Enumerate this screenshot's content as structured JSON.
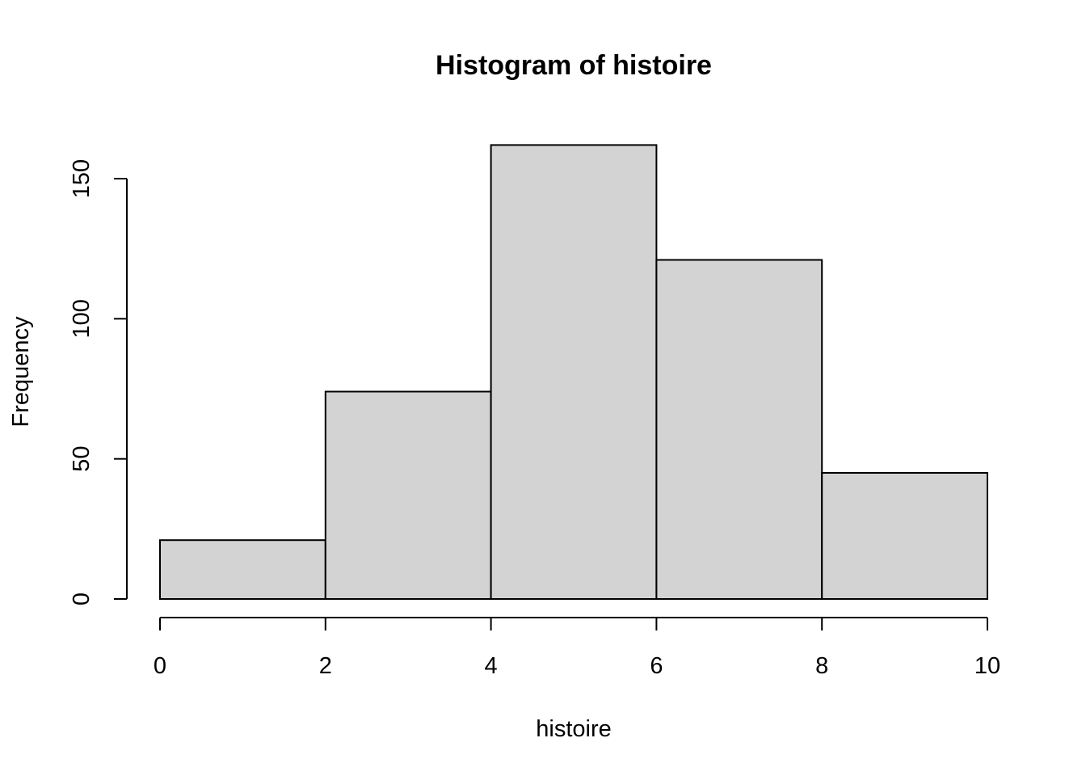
{
  "chart_data": {
    "type": "bar",
    "title": "Histogram of histoire",
    "xlabel": "histoire",
    "ylabel": "Frequency",
    "bins": [
      {
        "x0": 0,
        "x1": 2,
        "count": 21
      },
      {
        "x0": 2,
        "x1": 4,
        "count": 74
      },
      {
        "x0": 4,
        "x1": 6,
        "count": 162
      },
      {
        "x0": 6,
        "x1": 8,
        "count": 121
      },
      {
        "x0": 8,
        "x1": 10,
        "count": 45
      }
    ],
    "xlim": [
      0,
      10
    ],
    "ylim": [
      0,
      150
    ],
    "x_ticks": [
      "0",
      "2",
      "4",
      "6",
      "8",
      "10"
    ],
    "y_ticks": [
      "0",
      "50",
      "100",
      "150"
    ],
    "grid": false,
    "colors": {
      "bar_fill": "#d3d3d3",
      "bar_stroke": "#000000"
    }
  }
}
